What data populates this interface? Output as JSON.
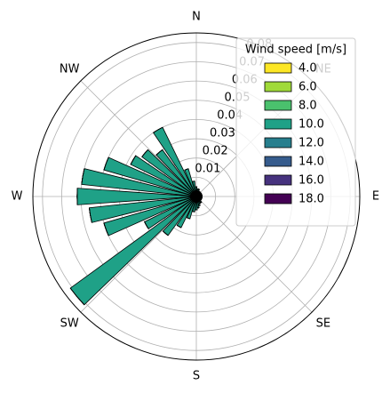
{
  "chart_data": {
    "type": "windrose",
    "legend_title": "Wind speed [m/s]",
    "angle_labels": [
      "N",
      "NE",
      "E",
      "SE",
      "S",
      "SW",
      "W",
      "NW"
    ],
    "x": [
      0,
      10,
      20,
      30,
      40,
      50,
      60,
      70,
      80,
      90,
      100,
      110,
      120,
      130,
      140,
      150,
      160,
      170,
      180,
      190,
      200,
      210,
      220,
      230,
      240,
      250,
      260,
      270,
      280,
      290,
      300,
      310,
      320,
      330,
      340,
      350
    ],
    "ylim": [
      0,
      0.085
    ],
    "yticks": [
      0.01,
      0.02,
      0.03,
      0.04,
      0.05,
      0.06,
      0.07,
      0.08
    ],
    "grid": true,
    "legend_position": "upper right",
    "series": [
      {
        "name": "4.0",
        "color": "#fde725",
        "values": [
          0.001,
          0.001,
          0.001,
          0.001,
          0.001,
          0.001,
          0.001,
          0.001,
          0.001,
          0.001,
          0.001,
          0.001,
          0.001,
          0.001,
          0.001,
          0.001,
          0.001,
          0.001,
          0.001,
          0.001,
          0.001,
          0.001,
          0.001,
          0.001,
          0.001,
          0.001,
          0.001,
          0.001,
          0.001,
          0.001,
          0.001,
          0.001,
          0.001,
          0.001,
          0.001,
          0.001
        ]
      },
      {
        "name": "6.0",
        "color": "#a0da39",
        "values": [
          0.001,
          0.001,
          0.001,
          0.001,
          0.001,
          0.001,
          0.001,
          0.001,
          0.001,
          0.001,
          0.001,
          0.001,
          0.001,
          0.001,
          0.001,
          0.001,
          0.001,
          0.001,
          0.001,
          0.001,
          0.001,
          0.001,
          0.001,
          0.001,
          0.001,
          0.001,
          0.001,
          0.001,
          0.001,
          0.001,
          0.001,
          0.001,
          0.001,
          0.001,
          0.001,
          0.001
        ]
      },
      {
        "name": "8.0",
        "color": "#4ac16d",
        "values": [
          0.001,
          0.001,
          0.001,
          0.001,
          0.001,
          0.001,
          0.001,
          0.001,
          0.001,
          0.001,
          0.001,
          0.001,
          0.001,
          0.001,
          0.001,
          0.001,
          0.001,
          0.001,
          0.001,
          0.001,
          0.001,
          0.001,
          0.001,
          0.001,
          0.001,
          0.001,
          0.001,
          0.001,
          0.001,
          0.001,
          0.001,
          0.001,
          0.001,
          0.001,
          0.001,
          0.001
        ]
      },
      {
        "name": "10.0",
        "color": "#1fa187",
        "values": [
          0.002,
          0.001,
          0.001,
          0,
          0,
          0,
          0,
          0,
          0,
          0,
          0,
          0,
          0,
          0,
          0.001,
          0.001,
          0.002,
          0.003,
          0.004,
          0.005,
          0.009,
          0.015,
          0.022,
          0.078,
          0.027,
          0.047,
          0.053,
          0.059,
          0.057,
          0.047,
          0.035,
          0.032,
          0.027,
          0.037,
          0.012,
          0.005
        ]
      },
      {
        "name": "12.0",
        "color": "#277f8e",
        "values": [
          0,
          0,
          0,
          0,
          0,
          0,
          0,
          0,
          0,
          0,
          0,
          0,
          0,
          0,
          0,
          0,
          0,
          0,
          0,
          0,
          0,
          0,
          0,
          0,
          0,
          0,
          0,
          0,
          0,
          0,
          0,
          0,
          0,
          0,
          0,
          0
        ]
      },
      {
        "name": "14.0",
        "color": "#365c8d",
        "values": [
          0,
          0,
          0,
          0,
          0,
          0,
          0,
          0,
          0,
          0,
          0,
          0,
          0,
          0,
          0,
          0,
          0,
          0,
          0,
          0,
          0,
          0,
          0,
          0,
          0,
          0,
          0,
          0,
          0,
          0,
          0,
          0,
          0,
          0,
          0,
          0
        ]
      },
      {
        "name": "16.0",
        "color": "#46327e",
        "values": [
          0,
          0,
          0,
          0,
          0,
          0,
          0,
          0,
          0,
          0,
          0,
          0,
          0,
          0,
          0,
          0,
          0,
          0,
          0,
          0,
          0,
          0,
          0,
          0,
          0,
          0,
          0,
          0,
          0,
          0,
          0,
          0,
          0,
          0,
          0,
          0
        ]
      },
      {
        "name": "18.0",
        "color": "#440154",
        "values": [
          0,
          0,
          0,
          0,
          0,
          0,
          0,
          0,
          0,
          0,
          0,
          0,
          0,
          0,
          0,
          0,
          0,
          0,
          0,
          0,
          0,
          0,
          0,
          0,
          0,
          0,
          0,
          0,
          0,
          0,
          0,
          0,
          0,
          0,
          0,
          0
        ]
      }
    ]
  }
}
